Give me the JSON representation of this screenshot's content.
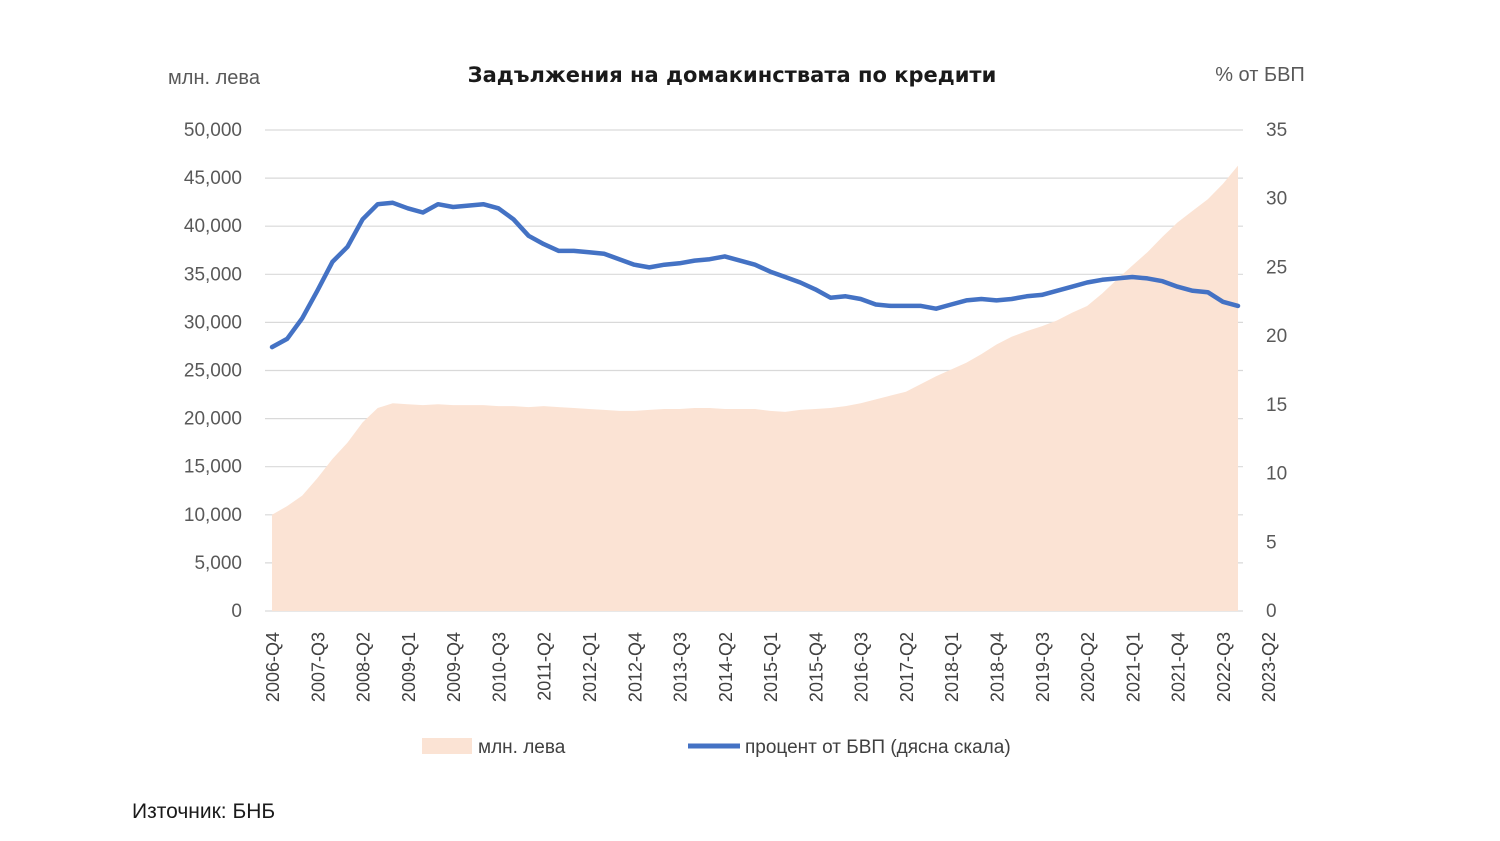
{
  "chart_data": {
    "type": "area+line",
    "title": "Задължения на домакинствата по кредити",
    "left_unit": "млн. лева",
    "right_unit": "% от БВП",
    "ylim_left": [
      0,
      50000
    ],
    "ylim_right": [
      0,
      35
    ],
    "yticks_left": [
      "50,000",
      "45,000",
      "40,000",
      "35,000",
      "30,000",
      "25,000",
      "20,000",
      "15,000",
      "10,000",
      "5,000",
      "0"
    ],
    "yticks_right": [
      "35",
      "30",
      "25",
      "20",
      "15",
      "10",
      "5",
      "0"
    ],
    "x_tick_labels": [
      "2006-Q4",
      "2007-Q3",
      "2008-Q2",
      "2009-Q1",
      "2009-Q4",
      "2010-Q3",
      "2011-Q2",
      "2012-Q1",
      "2012-Q4",
      "2013-Q3",
      "2014-Q2",
      "2015-Q1",
      "2015-Q4",
      "2016-Q3",
      "2017-Q2",
      "2018-Q1",
      "2018-Q4",
      "2019-Q3",
      "2020-Q2",
      "2021-Q1",
      "2021-Q4",
      "2022-Q3",
      "2023-Q2"
    ],
    "grid": true,
    "legend_position": "bottom",
    "series": [
      {
        "name": "млн. лева",
        "type": "area",
        "axis": "left",
        "color": "#fbe3d4",
        "values": [
          10000,
          10900,
          12000,
          13800,
          15800,
          17500,
          19600,
          21100,
          21600,
          21500,
          21400,
          21500,
          21400,
          21400,
          21400,
          21300,
          21300,
          21200,
          21300,
          21200,
          21100,
          21000,
          20900,
          20800,
          20800,
          20900,
          21000,
          21000,
          21100,
          21100,
          21000,
          21000,
          21000,
          20800,
          20700,
          20900,
          21000,
          21100,
          21300,
          21600,
          22000,
          22400,
          22800,
          23600,
          24400,
          25100,
          25800,
          26700,
          27700,
          28500,
          29100,
          29600,
          30200,
          31000,
          31700,
          33000,
          34500,
          35900,
          37300,
          38900,
          40400,
          41600,
          42800,
          44400,
          46300
        ]
      },
      {
        "name": "процент от БВП (дясна скала)",
        "type": "line",
        "axis": "right",
        "color": "#4472c4",
        "values": [
          19.2,
          19.8,
          21.3,
          23.3,
          25.4,
          26.5,
          28.5,
          29.6,
          29.7,
          29.3,
          29.0,
          29.6,
          29.4,
          29.5,
          29.6,
          29.3,
          28.5,
          27.3,
          26.7,
          26.2,
          26.2,
          26.1,
          26.0,
          25.6,
          25.2,
          25.0,
          25.2,
          25.3,
          25.5,
          25.6,
          25.8,
          25.5,
          25.2,
          24.7,
          24.3,
          23.9,
          23.4,
          22.8,
          22.9,
          22.7,
          22.3,
          22.2,
          22.2,
          22.2,
          22.0,
          22.3,
          22.6,
          22.7,
          22.6,
          22.7,
          22.9,
          23.0,
          23.3,
          23.6,
          23.9,
          24.1,
          24.2,
          24.3,
          24.2,
          24.0,
          23.6,
          23.3,
          23.2,
          22.5,
          22.2
        ]
      }
    ]
  },
  "source": "Източник: БНБ"
}
